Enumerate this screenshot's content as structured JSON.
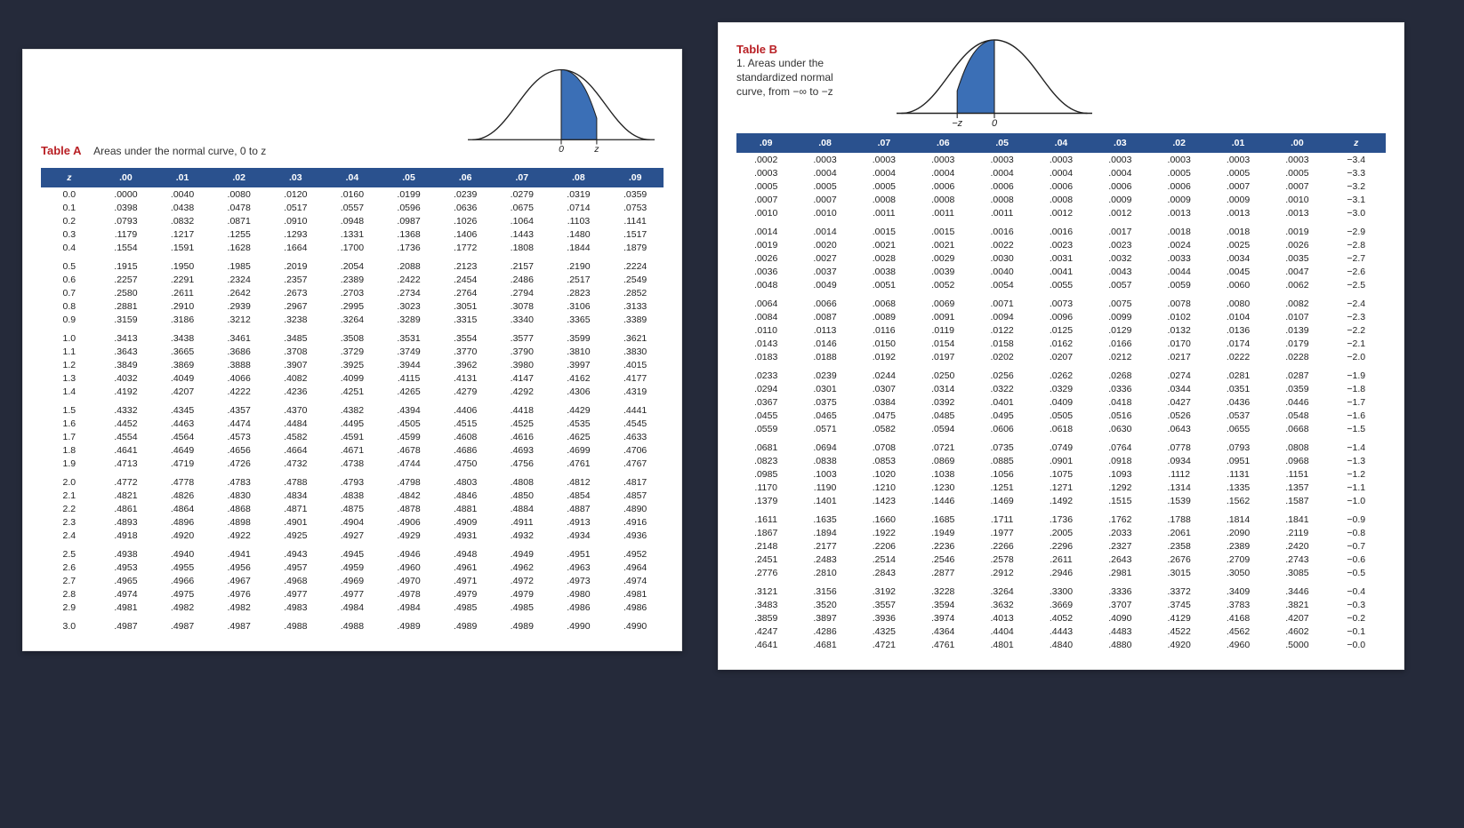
{
  "tableA": {
    "label": "Table A",
    "subtitle": "Areas under the normal curve, 0 to z",
    "axis_label_left": "0",
    "axis_label_right": "z",
    "header_bg": "#2a518e",
    "header_fg": "#ffffff",
    "accent_color": "#b92025",
    "curve_fill": "#3b6fb6",
    "columns": [
      "z",
      ".00",
      ".01",
      ".02",
      ".03",
      ".04",
      ".05",
      ".06",
      ".07",
      ".08",
      ".09"
    ],
    "groups": [
      [
        [
          "0.0",
          ".0000",
          ".0040",
          ".0080",
          ".0120",
          ".0160",
          ".0199",
          ".0239",
          ".0279",
          ".0319",
          ".0359"
        ],
        [
          "0.1",
          ".0398",
          ".0438",
          ".0478",
          ".0517",
          ".0557",
          ".0596",
          ".0636",
          ".0675",
          ".0714",
          ".0753"
        ],
        [
          "0.2",
          ".0793",
          ".0832",
          ".0871",
          ".0910",
          ".0948",
          ".0987",
          ".1026",
          ".1064",
          ".1103",
          ".1141"
        ],
        [
          "0.3",
          ".1179",
          ".1217",
          ".1255",
          ".1293",
          ".1331",
          ".1368",
          ".1406",
          ".1443",
          ".1480",
          ".1517"
        ],
        [
          "0.4",
          ".1554",
          ".1591",
          ".1628",
          ".1664",
          ".1700",
          ".1736",
          ".1772",
          ".1808",
          ".1844",
          ".1879"
        ]
      ],
      [
        [
          "0.5",
          ".1915",
          ".1950",
          ".1985",
          ".2019",
          ".2054",
          ".2088",
          ".2123",
          ".2157",
          ".2190",
          ".2224"
        ],
        [
          "0.6",
          ".2257",
          ".2291",
          ".2324",
          ".2357",
          ".2389",
          ".2422",
          ".2454",
          ".2486",
          ".2517",
          ".2549"
        ],
        [
          "0.7",
          ".2580",
          ".2611",
          ".2642",
          ".2673",
          ".2703",
          ".2734",
          ".2764",
          ".2794",
          ".2823",
          ".2852"
        ],
        [
          "0.8",
          ".2881",
          ".2910",
          ".2939",
          ".2967",
          ".2995",
          ".3023",
          ".3051",
          ".3078",
          ".3106",
          ".3133"
        ],
        [
          "0.9",
          ".3159",
          ".3186",
          ".3212",
          ".3238",
          ".3264",
          ".3289",
          ".3315",
          ".3340",
          ".3365",
          ".3389"
        ]
      ],
      [
        [
          "1.0",
          ".3413",
          ".3438",
          ".3461",
          ".3485",
          ".3508",
          ".3531",
          ".3554",
          ".3577",
          ".3599",
          ".3621"
        ],
        [
          "1.1",
          ".3643",
          ".3665",
          ".3686",
          ".3708",
          ".3729",
          ".3749",
          ".3770",
          ".3790",
          ".3810",
          ".3830"
        ],
        [
          "1.2",
          ".3849",
          ".3869",
          ".3888",
          ".3907",
          ".3925",
          ".3944",
          ".3962",
          ".3980",
          ".3997",
          ".4015"
        ],
        [
          "1.3",
          ".4032",
          ".4049",
          ".4066",
          ".4082",
          ".4099",
          ".4115",
          ".4131",
          ".4147",
          ".4162",
          ".4177"
        ],
        [
          "1.4",
          ".4192",
          ".4207",
          ".4222",
          ".4236",
          ".4251",
          ".4265",
          ".4279",
          ".4292",
          ".4306",
          ".4319"
        ]
      ],
      [
        [
          "1.5",
          ".4332",
          ".4345",
          ".4357",
          ".4370",
          ".4382",
          ".4394",
          ".4406",
          ".4418",
          ".4429",
          ".4441"
        ],
        [
          "1.6",
          ".4452",
          ".4463",
          ".4474",
          ".4484",
          ".4495",
          ".4505",
          ".4515",
          ".4525",
          ".4535",
          ".4545"
        ],
        [
          "1.7",
          ".4554",
          ".4564",
          ".4573",
          ".4582",
          ".4591",
          ".4599",
          ".4608",
          ".4616",
          ".4625",
          ".4633"
        ],
        [
          "1.8",
          ".4641",
          ".4649",
          ".4656",
          ".4664",
          ".4671",
          ".4678",
          ".4686",
          ".4693",
          ".4699",
          ".4706"
        ],
        [
          "1.9",
          ".4713",
          ".4719",
          ".4726",
          ".4732",
          ".4738",
          ".4744",
          ".4750",
          ".4756",
          ".4761",
          ".4767"
        ]
      ],
      [
        [
          "2.0",
          ".4772",
          ".4778",
          ".4783",
          ".4788",
          ".4793",
          ".4798",
          ".4803",
          ".4808",
          ".4812",
          ".4817"
        ],
        [
          "2.1",
          ".4821",
          ".4826",
          ".4830",
          ".4834",
          ".4838",
          ".4842",
          ".4846",
          ".4850",
          ".4854",
          ".4857"
        ],
        [
          "2.2",
          ".4861",
          ".4864",
          ".4868",
          ".4871",
          ".4875",
          ".4878",
          ".4881",
          ".4884",
          ".4887",
          ".4890"
        ],
        [
          "2.3",
          ".4893",
          ".4896",
          ".4898",
          ".4901",
          ".4904",
          ".4906",
          ".4909",
          ".4911",
          ".4913",
          ".4916"
        ],
        [
          "2.4",
          ".4918",
          ".4920",
          ".4922",
          ".4925",
          ".4927",
          ".4929",
          ".4931",
          ".4932",
          ".4934",
          ".4936"
        ]
      ],
      [
        [
          "2.5",
          ".4938",
          ".4940",
          ".4941",
          ".4943",
          ".4945",
          ".4946",
          ".4948",
          ".4949",
          ".4951",
          ".4952"
        ],
        [
          "2.6",
          ".4953",
          ".4955",
          ".4956",
          ".4957",
          ".4959",
          ".4960",
          ".4961",
          ".4962",
          ".4963",
          ".4964"
        ],
        [
          "2.7",
          ".4965",
          ".4966",
          ".4967",
          ".4968",
          ".4969",
          ".4970",
          ".4971",
          ".4972",
          ".4973",
          ".4974"
        ],
        [
          "2.8",
          ".4974",
          ".4975",
          ".4976",
          ".4977",
          ".4977",
          ".4978",
          ".4979",
          ".4979",
          ".4980",
          ".4981"
        ],
        [
          "2.9",
          ".4981",
          ".4982",
          ".4982",
          ".4983",
          ".4984",
          ".4984",
          ".4985",
          ".4985",
          ".4986",
          ".4986"
        ]
      ],
      [
        [
          "3.0",
          ".4987",
          ".4987",
          ".4987",
          ".4988",
          ".4988",
          ".4989",
          ".4989",
          ".4989",
          ".4990",
          ".4990"
        ]
      ]
    ]
  },
  "tableB": {
    "label": "Table B",
    "subtitle": "1. Areas under the\nstandardized normal\ncurve, from −∞ to −z",
    "axis_label_left": "−z",
    "axis_label_right": "0",
    "header_bg": "#2a518e",
    "header_fg": "#ffffff",
    "accent_color": "#b92025",
    "curve_fill": "#3b6fb6",
    "columns": [
      ".09",
      ".08",
      ".07",
      ".06",
      ".05",
      ".04",
      ".03",
      ".02",
      ".01",
      ".00",
      "z"
    ],
    "groups": [
      [
        [
          ".0002",
          ".0003",
          ".0003",
          ".0003",
          ".0003",
          ".0003",
          ".0003",
          ".0003",
          ".0003",
          ".0003",
          "−3.4"
        ],
        [
          ".0003",
          ".0004",
          ".0004",
          ".0004",
          ".0004",
          ".0004",
          ".0004",
          ".0005",
          ".0005",
          ".0005",
          "−3.3"
        ],
        [
          ".0005",
          ".0005",
          ".0005",
          ".0006",
          ".0006",
          ".0006",
          ".0006",
          ".0006",
          ".0007",
          ".0007",
          "−3.2"
        ],
        [
          ".0007",
          ".0007",
          ".0008",
          ".0008",
          ".0008",
          ".0008",
          ".0009",
          ".0009",
          ".0009",
          ".0010",
          "−3.1"
        ],
        [
          ".0010",
          ".0010",
          ".0011",
          ".0011",
          ".0011",
          ".0012",
          ".0012",
          ".0013",
          ".0013",
          ".0013",
          "−3.0"
        ]
      ],
      [
        [
          ".0014",
          ".0014",
          ".0015",
          ".0015",
          ".0016",
          ".0016",
          ".0017",
          ".0018",
          ".0018",
          ".0019",
          "−2.9"
        ],
        [
          ".0019",
          ".0020",
          ".0021",
          ".0021",
          ".0022",
          ".0023",
          ".0023",
          ".0024",
          ".0025",
          ".0026",
          "−2.8"
        ],
        [
          ".0026",
          ".0027",
          ".0028",
          ".0029",
          ".0030",
          ".0031",
          ".0032",
          ".0033",
          ".0034",
          ".0035",
          "−2.7"
        ],
        [
          ".0036",
          ".0037",
          ".0038",
          ".0039",
          ".0040",
          ".0041",
          ".0043",
          ".0044",
          ".0045",
          ".0047",
          "−2.6"
        ],
        [
          ".0048",
          ".0049",
          ".0051",
          ".0052",
          ".0054",
          ".0055",
          ".0057",
          ".0059",
          ".0060",
          ".0062",
          "−2.5"
        ]
      ],
      [
        [
          ".0064",
          ".0066",
          ".0068",
          ".0069",
          ".0071",
          ".0073",
          ".0075",
          ".0078",
          ".0080",
          ".0082",
          "−2.4"
        ],
        [
          ".0084",
          ".0087",
          ".0089",
          ".0091",
          ".0094",
          ".0096",
          ".0099",
          ".0102",
          ".0104",
          ".0107",
          "−2.3"
        ],
        [
          ".0110",
          ".0113",
          ".0116",
          ".0119",
          ".0122",
          ".0125",
          ".0129",
          ".0132",
          ".0136",
          ".0139",
          "−2.2"
        ],
        [
          ".0143",
          ".0146",
          ".0150",
          ".0154",
          ".0158",
          ".0162",
          ".0166",
          ".0170",
          ".0174",
          ".0179",
          "−2.1"
        ],
        [
          ".0183",
          ".0188",
          ".0192",
          ".0197",
          ".0202",
          ".0207",
          ".0212",
          ".0217",
          ".0222",
          ".0228",
          "−2.0"
        ]
      ],
      [
        [
          ".0233",
          ".0239",
          ".0244",
          ".0250",
          ".0256",
          ".0262",
          ".0268",
          ".0274",
          ".0281",
          ".0287",
          "−1.9"
        ],
        [
          ".0294",
          ".0301",
          ".0307",
          ".0314",
          ".0322",
          ".0329",
          ".0336",
          ".0344",
          ".0351",
          ".0359",
          "−1.8"
        ],
        [
          ".0367",
          ".0375",
          ".0384",
          ".0392",
          ".0401",
          ".0409",
          ".0418",
          ".0427",
          ".0436",
          ".0446",
          "−1.7"
        ],
        [
          ".0455",
          ".0465",
          ".0475",
          ".0485",
          ".0495",
          ".0505",
          ".0516",
          ".0526",
          ".0537",
          ".0548",
          "−1.6"
        ],
        [
          ".0559",
          ".0571",
          ".0582",
          ".0594",
          ".0606",
          ".0618",
          ".0630",
          ".0643",
          ".0655",
          ".0668",
          "−1.5"
        ]
      ],
      [
        [
          ".0681",
          ".0694",
          ".0708",
          ".0721",
          ".0735",
          ".0749",
          ".0764",
          ".0778",
          ".0793",
          ".0808",
          "−1.4"
        ],
        [
          ".0823",
          ".0838",
          ".0853",
          ".0869",
          ".0885",
          ".0901",
          ".0918",
          ".0934",
          ".0951",
          ".0968",
          "−1.3"
        ],
        [
          ".0985",
          ".1003",
          ".1020",
          ".1038",
          ".1056",
          ".1075",
          ".1093",
          ".1112",
          ".1131",
          ".1151",
          "−1.2"
        ],
        [
          ".1170",
          ".1190",
          ".1210",
          ".1230",
          ".1251",
          ".1271",
          ".1292",
          ".1314",
          ".1335",
          ".1357",
          "−1.1"
        ],
        [
          ".1379",
          ".1401",
          ".1423",
          ".1446",
          ".1469",
          ".1492",
          ".1515",
          ".1539",
          ".1562",
          ".1587",
          "−1.0"
        ]
      ],
      [
        [
          ".1611",
          ".1635",
          ".1660",
          ".1685",
          ".1711",
          ".1736",
          ".1762",
          ".1788",
          ".1814",
          ".1841",
          "−0.9"
        ],
        [
          ".1867",
          ".1894",
          ".1922",
          ".1949",
          ".1977",
          ".2005",
          ".2033",
          ".2061",
          ".2090",
          ".2119",
          "−0.8"
        ],
        [
          ".2148",
          ".2177",
          ".2206",
          ".2236",
          ".2266",
          ".2296",
          ".2327",
          ".2358",
          ".2389",
          ".2420",
          "−0.7"
        ],
        [
          ".2451",
          ".2483",
          ".2514",
          ".2546",
          ".2578",
          ".2611",
          ".2643",
          ".2676",
          ".2709",
          ".2743",
          "−0.6"
        ],
        [
          ".2776",
          ".2810",
          ".2843",
          ".2877",
          ".2912",
          ".2946",
          ".2981",
          ".3015",
          ".3050",
          ".3085",
          "−0.5"
        ]
      ],
      [
        [
          ".3121",
          ".3156",
          ".3192",
          ".3228",
          ".3264",
          ".3300",
          ".3336",
          ".3372",
          ".3409",
          ".3446",
          "−0.4"
        ],
        [
          ".3483",
          ".3520",
          ".3557",
          ".3594",
          ".3632",
          ".3669",
          ".3707",
          ".3745",
          ".3783",
          ".3821",
          "−0.3"
        ],
        [
          ".3859",
          ".3897",
          ".3936",
          ".3974",
          ".4013",
          ".4052",
          ".4090",
          ".4129",
          ".4168",
          ".4207",
          "−0.2"
        ],
        [
          ".4247",
          ".4286",
          ".4325",
          ".4364",
          ".4404",
          ".4443",
          ".4483",
          ".4522",
          ".4562",
          ".4602",
          "−0.1"
        ],
        [
          ".4641",
          ".4681",
          ".4721",
          ".4761",
          ".4801",
          ".4840",
          ".4880",
          ".4920",
          ".4960",
          ".5000",
          "−0.0"
        ]
      ]
    ]
  }
}
